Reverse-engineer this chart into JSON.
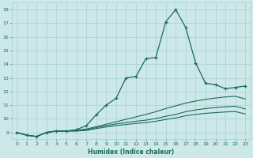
{
  "xlabel": "Humidex (Indice chaleur)",
  "bg_color": "#cce8e8",
  "grid_color": "#b0d4d4",
  "line_color": "#1a6b5a",
  "xlim": [
    -0.5,
    23.5
  ],
  "ylim": [
    8.5,
    18.5
  ],
  "yticks": [
    9,
    10,
    11,
    12,
    13,
    14,
    15,
    16,
    17,
    18
  ],
  "xticks": [
    0,
    1,
    2,
    3,
    4,
    5,
    6,
    7,
    8,
    9,
    10,
    11,
    12,
    13,
    14,
    15,
    16,
    17,
    18,
    19,
    20,
    21,
    22,
    23
  ],
  "main_x": [
    0,
    1,
    2,
    3,
    4,
    5,
    6,
    7,
    8,
    9,
    10,
    11,
    12,
    13,
    14,
    15,
    16,
    17,
    18,
    19,
    20,
    21,
    22,
    23
  ],
  "main_y": [
    9.0,
    8.8,
    8.7,
    9.0,
    9.1,
    9.1,
    9.2,
    9.5,
    10.3,
    11.0,
    11.5,
    13.0,
    13.1,
    14.4,
    14.5,
    17.1,
    18.0,
    16.7,
    14.1,
    12.6,
    12.5,
    12.2,
    12.3,
    12.4
  ],
  "line2_x": [
    0,
    1,
    2,
    3,
    4,
    5,
    6,
    7,
    8,
    9,
    10,
    11,
    12,
    13,
    14,
    15,
    16,
    17,
    18,
    19,
    20,
    21,
    22,
    23
  ],
  "line2_y": [
    9.0,
    8.8,
    8.7,
    9.0,
    9.1,
    9.1,
    9.15,
    9.25,
    9.42,
    9.6,
    9.78,
    9.96,
    10.14,
    10.32,
    10.52,
    10.75,
    10.95,
    11.15,
    11.3,
    11.42,
    11.52,
    11.6,
    11.65,
    11.45
  ],
  "line3_x": [
    0,
    1,
    2,
    3,
    4,
    5,
    6,
    7,
    8,
    9,
    10,
    11,
    12,
    13,
    14,
    15,
    16,
    17,
    18,
    19,
    20,
    21,
    22,
    23
  ],
  "line3_y": [
    9.0,
    8.8,
    8.7,
    9.0,
    9.1,
    9.1,
    9.12,
    9.2,
    9.35,
    9.5,
    9.62,
    9.72,
    9.82,
    9.9,
    10.02,
    10.18,
    10.32,
    10.52,
    10.65,
    10.75,
    10.82,
    10.88,
    10.92,
    10.72
  ],
  "line4_x": [
    0,
    1,
    2,
    3,
    4,
    5,
    6,
    7,
    8,
    9,
    10,
    11,
    12,
    13,
    14,
    15,
    16,
    17,
    18,
    19,
    20,
    21,
    22,
    23
  ],
  "line4_y": [
    9.0,
    8.8,
    8.7,
    9.0,
    9.1,
    9.1,
    9.1,
    9.15,
    9.28,
    9.4,
    9.5,
    9.58,
    9.66,
    9.72,
    9.82,
    9.95,
    10.06,
    10.22,
    10.32,
    10.4,
    10.45,
    10.5,
    10.53,
    10.35
  ]
}
